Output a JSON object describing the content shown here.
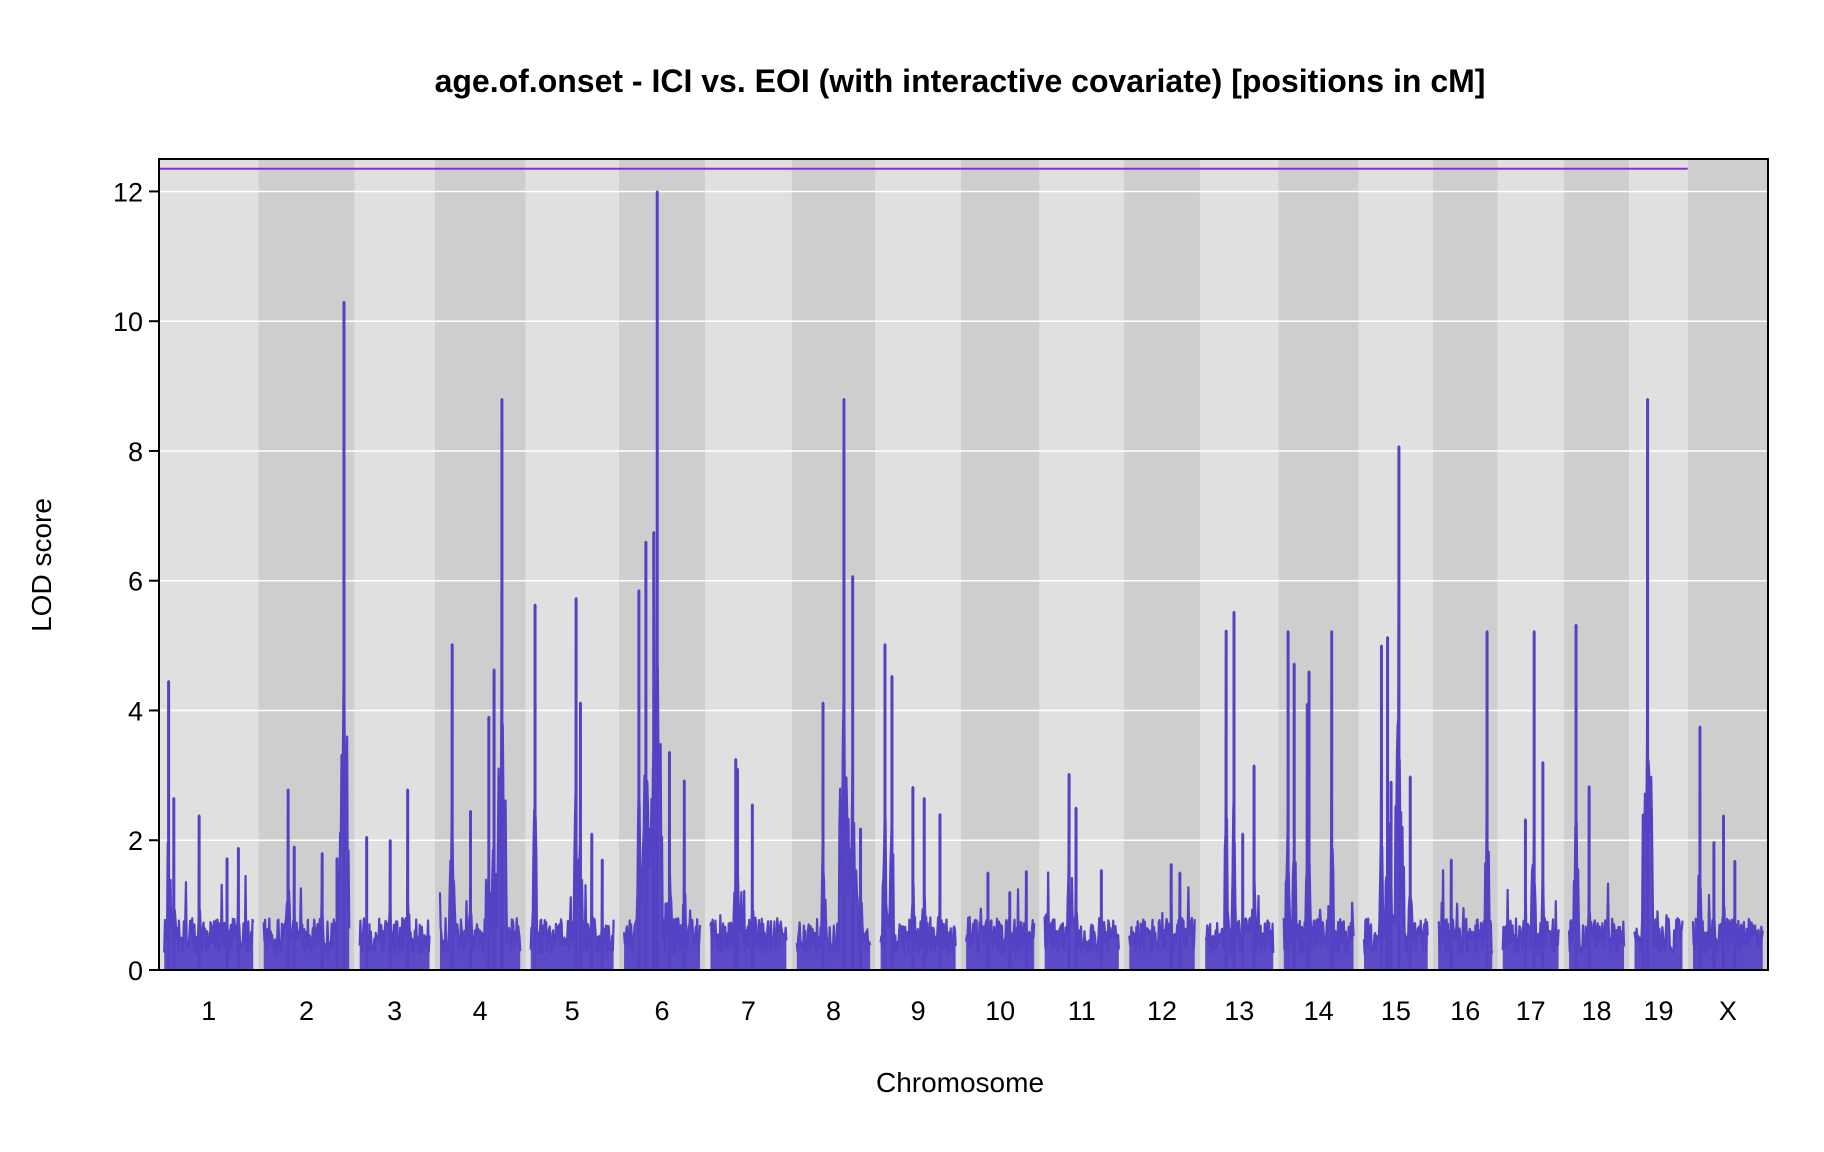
{
  "chart_data": {
    "type": "line",
    "title": "age.of.onset - ICI vs. EOI (with interactive covariate) [positions in cM]",
    "xlabel": "Chromosome",
    "ylabel": "LOD score",
    "ylim": [
      0,
      12.5
    ],
    "yticks": [
      0,
      2,
      4,
      6,
      8,
      10,
      12
    ],
    "threshold": 12.35,
    "colors": {
      "line": "#5442c4",
      "threshold": "#8a2be2",
      "band_light": "#e0e0e0",
      "band_dark": "#cecece",
      "grid": "#ffffff"
    },
    "chromosomes": [
      {
        "label": "1",
        "length": 102,
        "peaks": [
          [
            5,
            4.45
          ],
          [
            11,
            2.65
          ],
          [
            40,
            2.38
          ],
          [
            85,
            1.88
          ],
          [
            72,
            1.72
          ]
        ]
      },
      {
        "label": "2",
        "length": 98,
        "peaks": [
          [
            28,
            2.78
          ],
          [
            92,
            10.3
          ],
          [
            67,
            1.8
          ],
          [
            35,
            1.9
          ],
          [
            84,
            1.72
          ]
        ]
      },
      {
        "label": "3",
        "length": 80,
        "peaks": [
          [
            8,
            2.05
          ],
          [
            55,
            2.78
          ],
          [
            35,
            2.0
          ]
        ]
      },
      {
        "label": "4",
        "length": 92,
        "peaks": [
          [
            14,
            5.02
          ],
          [
            62,
            4.63
          ],
          [
            71,
            8.8
          ],
          [
            56,
            3.9
          ],
          [
            35,
            2.45
          ]
        ]
      },
      {
        "label": "5",
        "length": 95,
        "peaks": [
          [
            5,
            5.63
          ],
          [
            52,
            5.73
          ],
          [
            57,
            4.12
          ],
          [
            70,
            2.1
          ],
          [
            82,
            1.7
          ]
        ]
      },
      {
        "label": "6",
        "length": 87,
        "peaks": [
          [
            17,
            5.85
          ],
          [
            25,
            6.6
          ],
          [
            34,
            6.75
          ],
          [
            38,
            12.0
          ],
          [
            52,
            3.36
          ],
          [
            69,
            2.92
          ]
        ]
      },
      {
        "label": "7",
        "length": 87,
        "peaks": [
          [
            29,
            3.25
          ],
          [
            31,
            3.1
          ],
          [
            48,
            2.55
          ]
        ]
      },
      {
        "label": "8",
        "length": 84,
        "peaks": [
          [
            30,
            4.12
          ],
          [
            54,
            8.8
          ],
          [
            64,
            6.07
          ],
          [
            73,
            2.18
          ]
        ]
      },
      {
        "label": "9",
        "length": 86,
        "peaks": [
          [
            5,
            5.02
          ],
          [
            13,
            4.53
          ],
          [
            37,
            2.82
          ],
          [
            50,
            2.65
          ],
          [
            68,
            2.4
          ]
        ]
      },
      {
        "label": "10",
        "length": 78,
        "peaks": [
          [
            25,
            1.5
          ],
          [
            50,
            1.2
          ],
          [
            69,
            1.52
          ]
        ]
      },
      {
        "label": "11",
        "length": 85,
        "peaks": [
          [
            28,
            3.02
          ],
          [
            36,
            2.5
          ],
          [
            65,
            1.54
          ]
        ]
      },
      {
        "label": "12",
        "length": 75,
        "peaks": [
          [
            48,
            1.63
          ],
          [
            58,
            1.5
          ]
        ]
      },
      {
        "label": "13",
        "length": 78,
        "peaks": [
          [
            24,
            5.23
          ],
          [
            33,
            5.52
          ],
          [
            56,
            3.15
          ],
          [
            43,
            2.1
          ]
        ]
      },
      {
        "label": "14",
        "length": 80,
        "peaks": [
          [
            5,
            5.22
          ],
          [
            12,
            4.72
          ],
          [
            29,
            4.6
          ],
          [
            27,
            4.1
          ],
          [
            55,
            5.22
          ]
        ]
      },
      {
        "label": "15",
        "length": 73,
        "peaks": [
          [
            20,
            5.0
          ],
          [
            27,
            5.13
          ],
          [
            31,
            2.9
          ],
          [
            40,
            8.07
          ],
          [
            53,
            2.98
          ]
        ]
      },
      {
        "label": "16",
        "length": 62,
        "peaks": [
          [
            15,
            1.7
          ],
          [
            56,
            5.22
          ]
        ]
      },
      {
        "label": "17",
        "length": 64,
        "peaks": [
          [
            26,
            2.32
          ],
          [
            36,
            5.22
          ],
          [
            46,
            3.2
          ]
        ]
      },
      {
        "label": "18",
        "length": 63,
        "peaks": [
          [
            8,
            5.32
          ],
          [
            23,
            2.83
          ]
        ]
      },
      {
        "label": "19",
        "length": 55,
        "peaks": [
          [
            10,
            1.92
          ],
          [
            15,
            8.8
          ]
        ]
      },
      {
        "label": "X",
        "length": 80,
        "peaks": [
          [
            8,
            3.75
          ],
          [
            35,
            2.38
          ],
          [
            48,
            1.68
          ],
          [
            24,
            1.97
          ]
        ]
      }
    ]
  }
}
